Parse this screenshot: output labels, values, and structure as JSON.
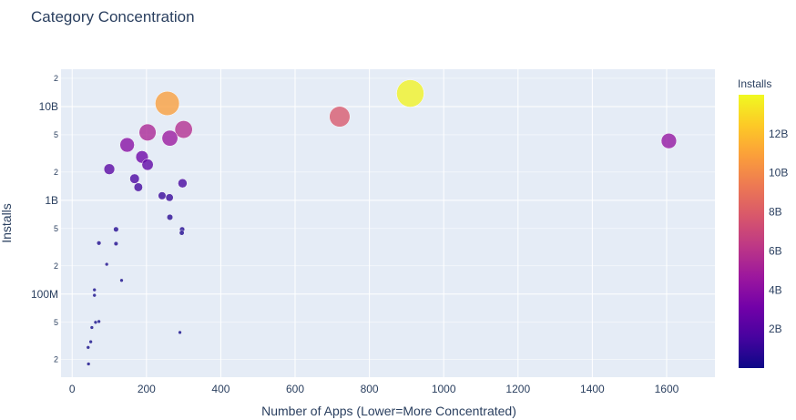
{
  "chart_data": {
    "type": "scatter",
    "title": "Category Concentration",
    "xlabel": "Number of Apps (Lower=More Concentrated)",
    "ylabel": "Installs",
    "xlim": [
      -30,
      1730
    ],
    "ylim": [
      13000000,
      25000000000
    ],
    "y_scale": "log",
    "grid": true,
    "x_ticks": [
      "0",
      "200",
      "400",
      "600",
      "800",
      "1000",
      "1200",
      "1400",
      "1600"
    ],
    "x_tick_values": [
      0,
      200,
      400,
      600,
      800,
      1000,
      1200,
      1400,
      1600
    ],
    "y_major_ticks": [
      {
        "value": 100000000,
        "label": "100M"
      },
      {
        "value": 1000000000,
        "label": "1B"
      },
      {
        "value": 10000000000,
        "label": "10B"
      }
    ],
    "y_minor_ticks": [
      {
        "value": 20000000,
        "label": "2"
      },
      {
        "value": 50000000,
        "label": "5"
      },
      {
        "value": 200000000,
        "label": "2"
      },
      {
        "value": 500000000,
        "label": "5"
      },
      {
        "value": 2000000000,
        "label": "2"
      },
      {
        "value": 5000000000,
        "label": "5"
      },
      {
        "value": 20000000000,
        "label": "2"
      }
    ],
    "colorbar": {
      "title": "Installs",
      "min": 0,
      "max": 14000000000,
      "ticks": [
        {
          "value": 2000000000,
          "label": "2B"
        },
        {
          "value": 4000000000,
          "label": "4B"
        },
        {
          "value": 6000000000,
          "label": "6B"
        },
        {
          "value": 8000000000,
          "label": "8B"
        },
        {
          "value": 10000000000,
          "label": "10B"
        },
        {
          "value": 12000000000,
          "label": "12B"
        }
      ]
    },
    "points": [
      {
        "x": 1606,
        "y": 4300000000
      },
      {
        "x": 910,
        "y": 13800000000
      },
      {
        "x": 720,
        "y": 7800000000
      },
      {
        "x": 256,
        "y": 10800000000
      },
      {
        "x": 300,
        "y": 5700000000
      },
      {
        "x": 203,
        "y": 5300000000
      },
      {
        "x": 263,
        "y": 4600000000
      },
      {
        "x": 148,
        "y": 3900000000
      },
      {
        "x": 188,
        "y": 2900000000
      },
      {
        "x": 203,
        "y": 2400000000
      },
      {
        "x": 100,
        "y": 2150000000
      },
      {
        "x": 168,
        "y": 1700000000
      },
      {
        "x": 297,
        "y": 1520000000
      },
      {
        "x": 178,
        "y": 1380000000
      },
      {
        "x": 242,
        "y": 1120000000
      },
      {
        "x": 262,
        "y": 1070000000
      },
      {
        "x": 263,
        "y": 660000000
      },
      {
        "x": 118,
        "y": 490000000
      },
      {
        "x": 296,
        "y": 490000000
      },
      {
        "x": 295,
        "y": 450000000
      },
      {
        "x": 72,
        "y": 350000000
      },
      {
        "x": 118,
        "y": 345000000
      },
      {
        "x": 93,
        "y": 208000000
      },
      {
        "x": 133,
        "y": 140000000
      },
      {
        "x": 60,
        "y": 111000000
      },
      {
        "x": 60,
        "y": 97000000
      },
      {
        "x": 72,
        "y": 51000000
      },
      {
        "x": 63,
        "y": 50000000
      },
      {
        "x": 53,
        "y": 44000000
      },
      {
        "x": 290,
        "y": 39000000
      },
      {
        "x": 50,
        "y": 31000000
      },
      {
        "x": 43,
        "y": 27000000
      },
      {
        "x": 44,
        "y": 18000000
      }
    ]
  }
}
